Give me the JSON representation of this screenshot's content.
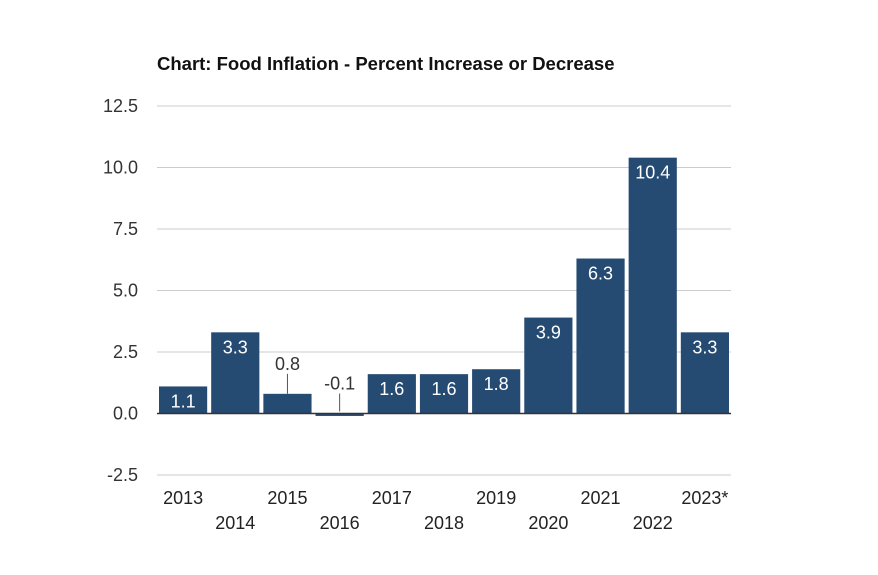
{
  "chart_data": {
    "type": "bar",
    "title": "Chart: Food Inflation - Percent Increase or Decrease",
    "categories": [
      "2013",
      "2014",
      "2015",
      "2016",
      "2017",
      "2018",
      "2019",
      "2020",
      "2021",
      "2022",
      "2023*"
    ],
    "values": [
      1.1,
      3.3,
      0.8,
      -0.1,
      1.6,
      1.6,
      1.8,
      3.9,
      6.3,
      10.4,
      3.3
    ],
    "data_labels": [
      "1.1",
      "3.3",
      "0.8",
      "-0.1",
      "1.6",
      "1.6",
      "1.8",
      "3.9",
      "6.3",
      "10.4",
      "3.3"
    ],
    "y_ticks": [
      -2.5,
      0.0,
      2.5,
      5.0,
      7.5,
      10.0,
      12.5
    ],
    "y_tick_labels": [
      "-2.5",
      "0.0",
      "2.5",
      "5.0",
      "7.5",
      "10.0",
      "12.5"
    ],
    "ylim": [
      -2.5,
      12.5
    ],
    "xlabel": "",
    "ylabel": "",
    "grid": true,
    "legend": "none",
    "bar_color": "#264b73",
    "grid_color": "#cccccc",
    "axis_color": "#333333"
  }
}
